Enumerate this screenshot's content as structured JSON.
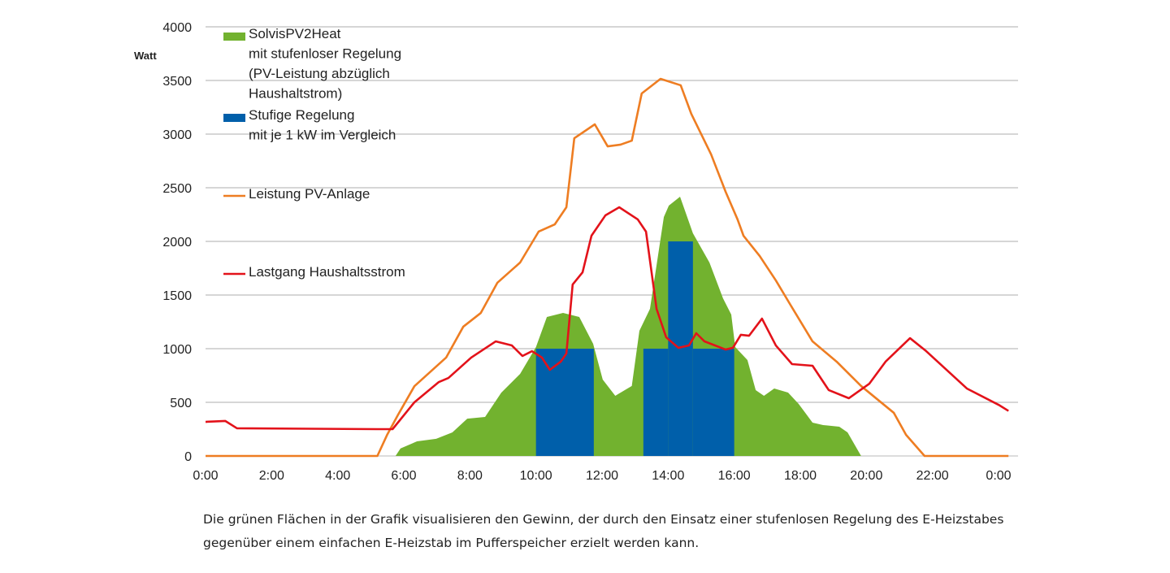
{
  "chart_data": {
    "type": "area",
    "ylabel": "Watt",
    "ylim": [
      0,
      4000
    ],
    "yticks": [
      "0",
      "500",
      "1000",
      "1500",
      "2000",
      "2500",
      "3000",
      "3500",
      "4000"
    ],
    "xlim_hours": [
      0,
      24
    ],
    "xticks": [
      "0:00",
      "2:00",
      "4:00",
      "6:00",
      "8:00",
      "10:00",
      "12:00",
      "14:00",
      "16:00",
      "18:00",
      "20:00",
      "22:00",
      "0:00"
    ],
    "grid": true,
    "legend_position": "top-left",
    "colors": {
      "green": "#72b22f",
      "blue": "#005faa",
      "orange": "#ee7d22",
      "red": "#e3121a",
      "grid": "#bdbdbd"
    },
    "series": [
      {
        "name": "SolvisPV2Heat mit stufenloser Regelung (PV-Leistung abzüglich Haushaltstrom)",
        "legend_lines": [
          "SolvisPV2Heat",
          "mit stufenloser Regelung",
          "(PV-Leistung abzüglich",
          "Haushaltstrom)"
        ],
        "kind": "area",
        "color": "#72b22f",
        "points": [
          [
            5.75,
            0
          ],
          [
            5.9,
            70
          ],
          [
            6.4,
            136
          ],
          [
            6.98,
            160
          ],
          [
            7.47,
            220
          ],
          [
            7.92,
            348
          ],
          [
            8.46,
            364
          ],
          [
            8.95,
            590
          ],
          [
            9.52,
            765
          ],
          [
            10.0,
            1015
          ],
          [
            10.33,
            1295
          ],
          [
            10.82,
            1333
          ],
          [
            11.31,
            1295
          ],
          [
            11.73,
            1045
          ],
          [
            12.02,
            712
          ],
          [
            12.4,
            561
          ],
          [
            12.9,
            652
          ],
          [
            13.13,
            1167
          ],
          [
            13.45,
            1371
          ],
          [
            13.87,
            2227
          ],
          [
            14.02,
            2333
          ],
          [
            14.36,
            2417
          ],
          [
            14.75,
            2076
          ],
          [
            15.25,
            1803
          ],
          [
            15.66,
            1470
          ],
          [
            15.91,
            1318
          ],
          [
            16.03,
            1015
          ],
          [
            16.4,
            894
          ],
          [
            16.65,
            614
          ],
          [
            16.9,
            561
          ],
          [
            17.21,
            629
          ],
          [
            17.63,
            591
          ],
          [
            17.95,
            485
          ],
          [
            18.37,
            311
          ],
          [
            18.69,
            288
          ],
          [
            19.18,
            273
          ],
          [
            19.43,
            220
          ],
          [
            19.84,
            0
          ]
        ]
      },
      {
        "name": "Stufige Regelung mit je 1 kW im Vergleich",
        "legend_lines": [
          "Stufige Regelung",
          "mit  je 1 kW im Vergleich"
        ],
        "kind": "bars",
        "color": "#005faa",
        "bars": [
          [
            10.0,
            11.75,
            1000
          ],
          [
            13.25,
            14.0,
            1000
          ],
          [
            14.0,
            14.75,
            2000
          ],
          [
            14.75,
            16.0,
            1000
          ]
        ]
      },
      {
        "name": "Leistung PV-Anlage",
        "legend_lines": [
          "Leistung PV-Anlage"
        ],
        "kind": "line",
        "color": "#ee7d22",
        "points": [
          [
            0,
            0
          ],
          [
            5.2,
            0
          ],
          [
            5.5,
            200
          ],
          [
            5.83,
            386
          ],
          [
            6.32,
            650
          ],
          [
            7.28,
            917
          ],
          [
            7.8,
            1205
          ],
          [
            8.33,
            1333
          ],
          [
            8.83,
            1614
          ],
          [
            9.52,
            1803
          ],
          [
            10.08,
            2091
          ],
          [
            10.57,
            2159
          ],
          [
            10.92,
            2318
          ],
          [
            11.16,
            2962
          ],
          [
            11.78,
            3091
          ],
          [
            12.17,
            2886
          ],
          [
            12.56,
            2902
          ],
          [
            12.9,
            2939
          ],
          [
            13.2,
            3379
          ],
          [
            13.77,
            3515
          ],
          [
            14.38,
            3455
          ],
          [
            14.7,
            3189
          ],
          [
            15.3,
            2811
          ],
          [
            15.74,
            2462
          ],
          [
            16.1,
            2205
          ],
          [
            16.28,
            2053
          ],
          [
            16.77,
            1864
          ],
          [
            17.26,
            1636
          ],
          [
            17.7,
            1409
          ],
          [
            18.37,
            1068
          ],
          [
            19.1,
            879
          ],
          [
            19.84,
            652
          ],
          [
            20.83,
            402
          ],
          [
            21.2,
            197
          ],
          [
            21.76,
            0
          ],
          [
            24.3,
            0
          ]
        ]
      },
      {
        "name": "Lastgang Haushaltsstrom",
        "legend_lines": [
          "Lastgang Haushaltsstrom"
        ],
        "kind": "line",
        "color": "#e3121a",
        "points": [
          [
            0,
            318
          ],
          [
            0.6,
            326
          ],
          [
            0.95,
            258
          ],
          [
            5.2,
            250
          ],
          [
            5.66,
            250
          ],
          [
            6.32,
            500
          ],
          [
            7.06,
            689
          ],
          [
            7.35,
            727
          ],
          [
            8.04,
            917
          ],
          [
            8.78,
            1068
          ],
          [
            9.27,
            1030
          ],
          [
            9.59,
            932
          ],
          [
            9.88,
            977
          ],
          [
            10.18,
            917
          ],
          [
            10.42,
            803
          ],
          [
            10.75,
            879
          ],
          [
            10.92,
            955
          ],
          [
            11.11,
            1598
          ],
          [
            11.41,
            1712
          ],
          [
            11.68,
            2053
          ],
          [
            12.1,
            2242
          ],
          [
            12.52,
            2318
          ],
          [
            13.08,
            2205
          ],
          [
            13.33,
            2091
          ],
          [
            13.65,
            1371
          ],
          [
            13.94,
            1106
          ],
          [
            14.31,
            1008
          ],
          [
            14.63,
            1030
          ],
          [
            14.85,
            1144
          ],
          [
            15.1,
            1068
          ],
          [
            15.74,
            992
          ],
          [
            15.96,
            1008
          ],
          [
            16.2,
            1129
          ],
          [
            16.45,
            1121
          ],
          [
            16.84,
            1280
          ],
          [
            17.26,
            1030
          ],
          [
            17.75,
            856
          ],
          [
            18.37,
            841
          ],
          [
            18.86,
            614
          ],
          [
            19.47,
            538
          ],
          [
            20.09,
            674
          ],
          [
            20.58,
            879
          ],
          [
            21.32,
            1098
          ],
          [
            21.81,
            977
          ],
          [
            23.04,
            629
          ],
          [
            24.0,
            477
          ],
          [
            24.3,
            420
          ]
        ]
      }
    ]
  },
  "caption": "Die grünen Flächen in der Grafik visualisieren den Gewinn, der durch den Einsatz einer stufenlosen Regelung des E-Heizstabes gegenüber einem einfachen E-Heizstab im Pufferspeicher erzielt werden kann."
}
